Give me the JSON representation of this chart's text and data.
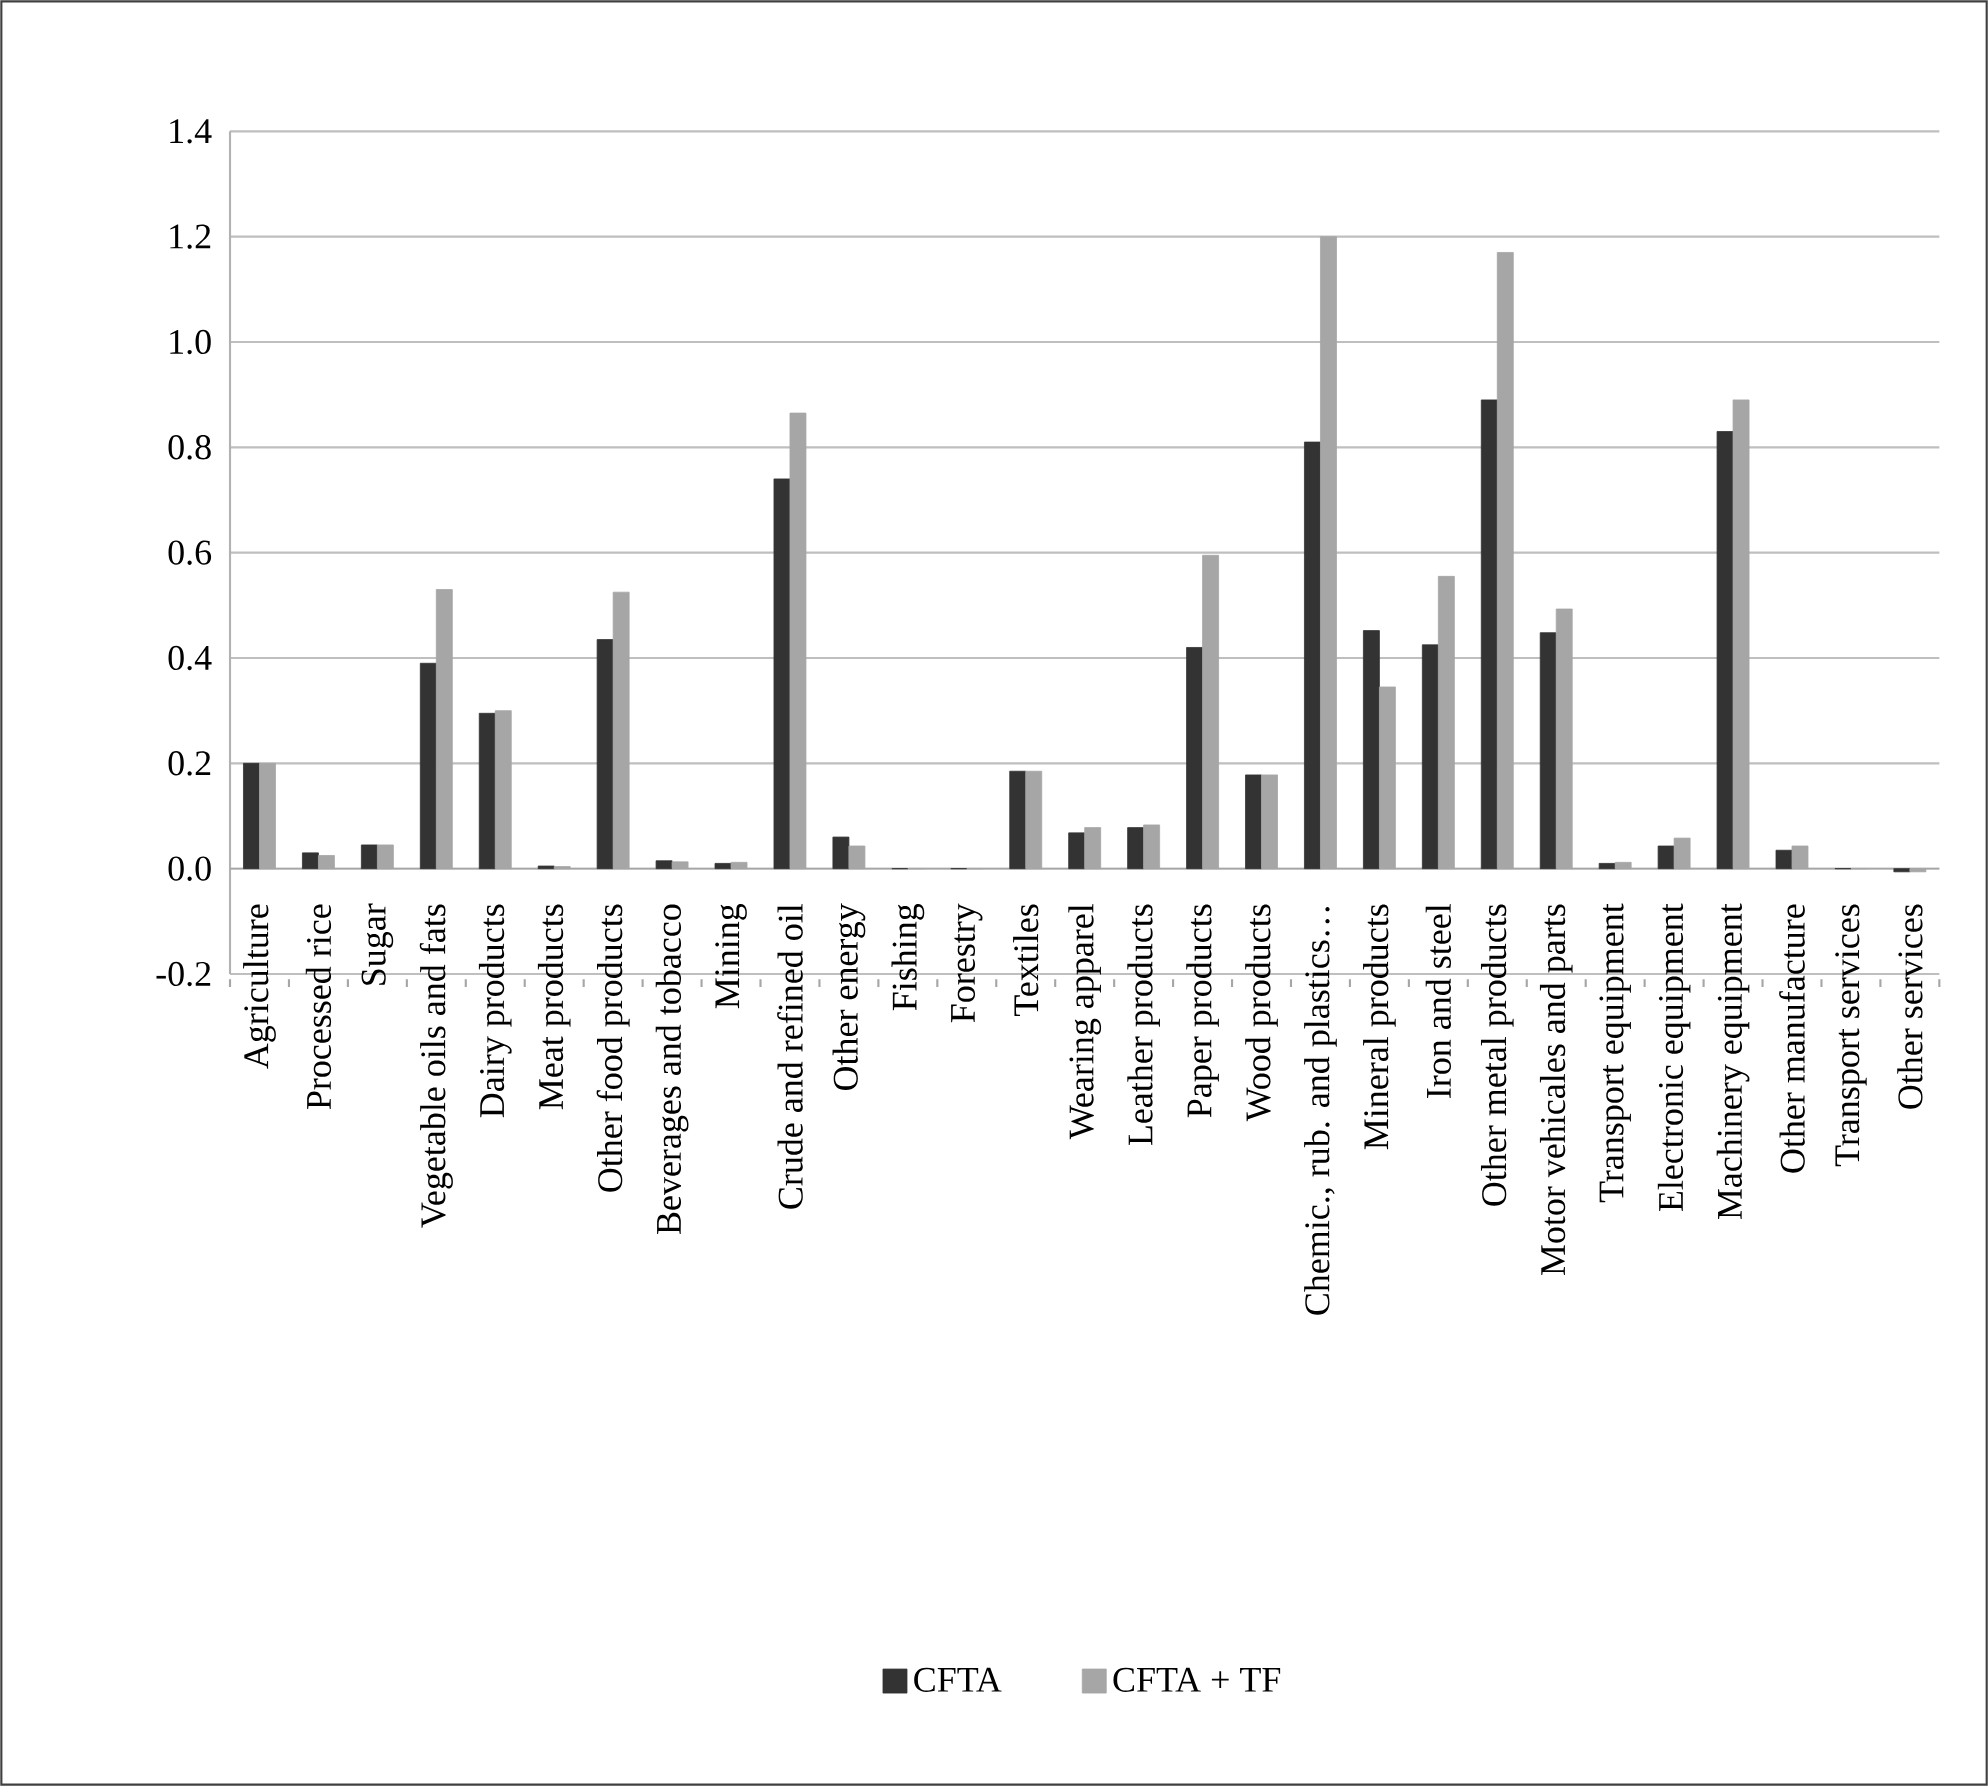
{
  "chart_data": {
    "type": "bar",
    "categories": [
      "Agriculture",
      "Processed rice",
      "Sugar",
      "Vegetable oils and fats",
      "Dairy products",
      "Meat products",
      "Other food products",
      "Beverages and tobacco",
      "Mining",
      "Crude and refined oil",
      "Other energy",
      "Fishing",
      "Forestry",
      "Textiles",
      "Wearing apparel",
      "Leather products",
      "Paper products",
      "Wood products",
      "Chemic., rub. and plastics…",
      "Mineral products",
      "Iron and steel",
      "Other metal products",
      "Motor vehicales and parts",
      "Transport equipment",
      "Electronic equipment",
      "Machinery equipment",
      "Other manufacture",
      "Transport services",
      "Other services"
    ],
    "series": [
      {
        "name": "CFTA",
        "color": "#333333",
        "values": [
          0.2,
          0.03,
          0.045,
          0.39,
          0.295,
          0.005,
          0.435,
          0.015,
          0.01,
          0.74,
          0.06,
          0,
          0,
          0.185,
          0.068,
          0.078,
          0.42,
          0.178,
          0.81,
          0.452,
          0.425,
          0.89,
          0.448,
          0.01,
          0.043,
          0.83,
          0.035,
          0,
          -0.006
        ]
      },
      {
        "name": "CFTA + TF",
        "color": "#a6a6a6",
        "values": [
          0.2,
          0.025,
          0.045,
          0.53,
          0.3,
          0.004,
          0.525,
          0.013,
          0.012,
          0.865,
          0.043,
          0,
          0,
          0.185,
          0.078,
          0.083,
          0.595,
          0.178,
          1.2,
          0.345,
          0.555,
          1.17,
          0.493,
          0.012,
          0.058,
          0.89,
          0.043,
          0,
          -0.006
        ]
      }
    ],
    "ylim": [
      -0.2,
      1.4
    ],
    "yticks": [
      {
        "value": -0.2,
        "label": "-0.2"
      },
      {
        "value": 0,
        "label": "0.0"
      },
      {
        "value": 0.2,
        "label": "0.2"
      },
      {
        "value": 0.4,
        "label": "0.4"
      },
      {
        "value": 0.6,
        "label": "0.6"
      },
      {
        "value": 0.8,
        "label": "0.8"
      },
      {
        "value": 1.0,
        "label": "1.0"
      },
      {
        "value": 1.2,
        "label": "1.2"
      },
      {
        "value": 1.4,
        "label": "1.4"
      }
    ],
    "grid": "y",
    "legend": "bottom"
  }
}
